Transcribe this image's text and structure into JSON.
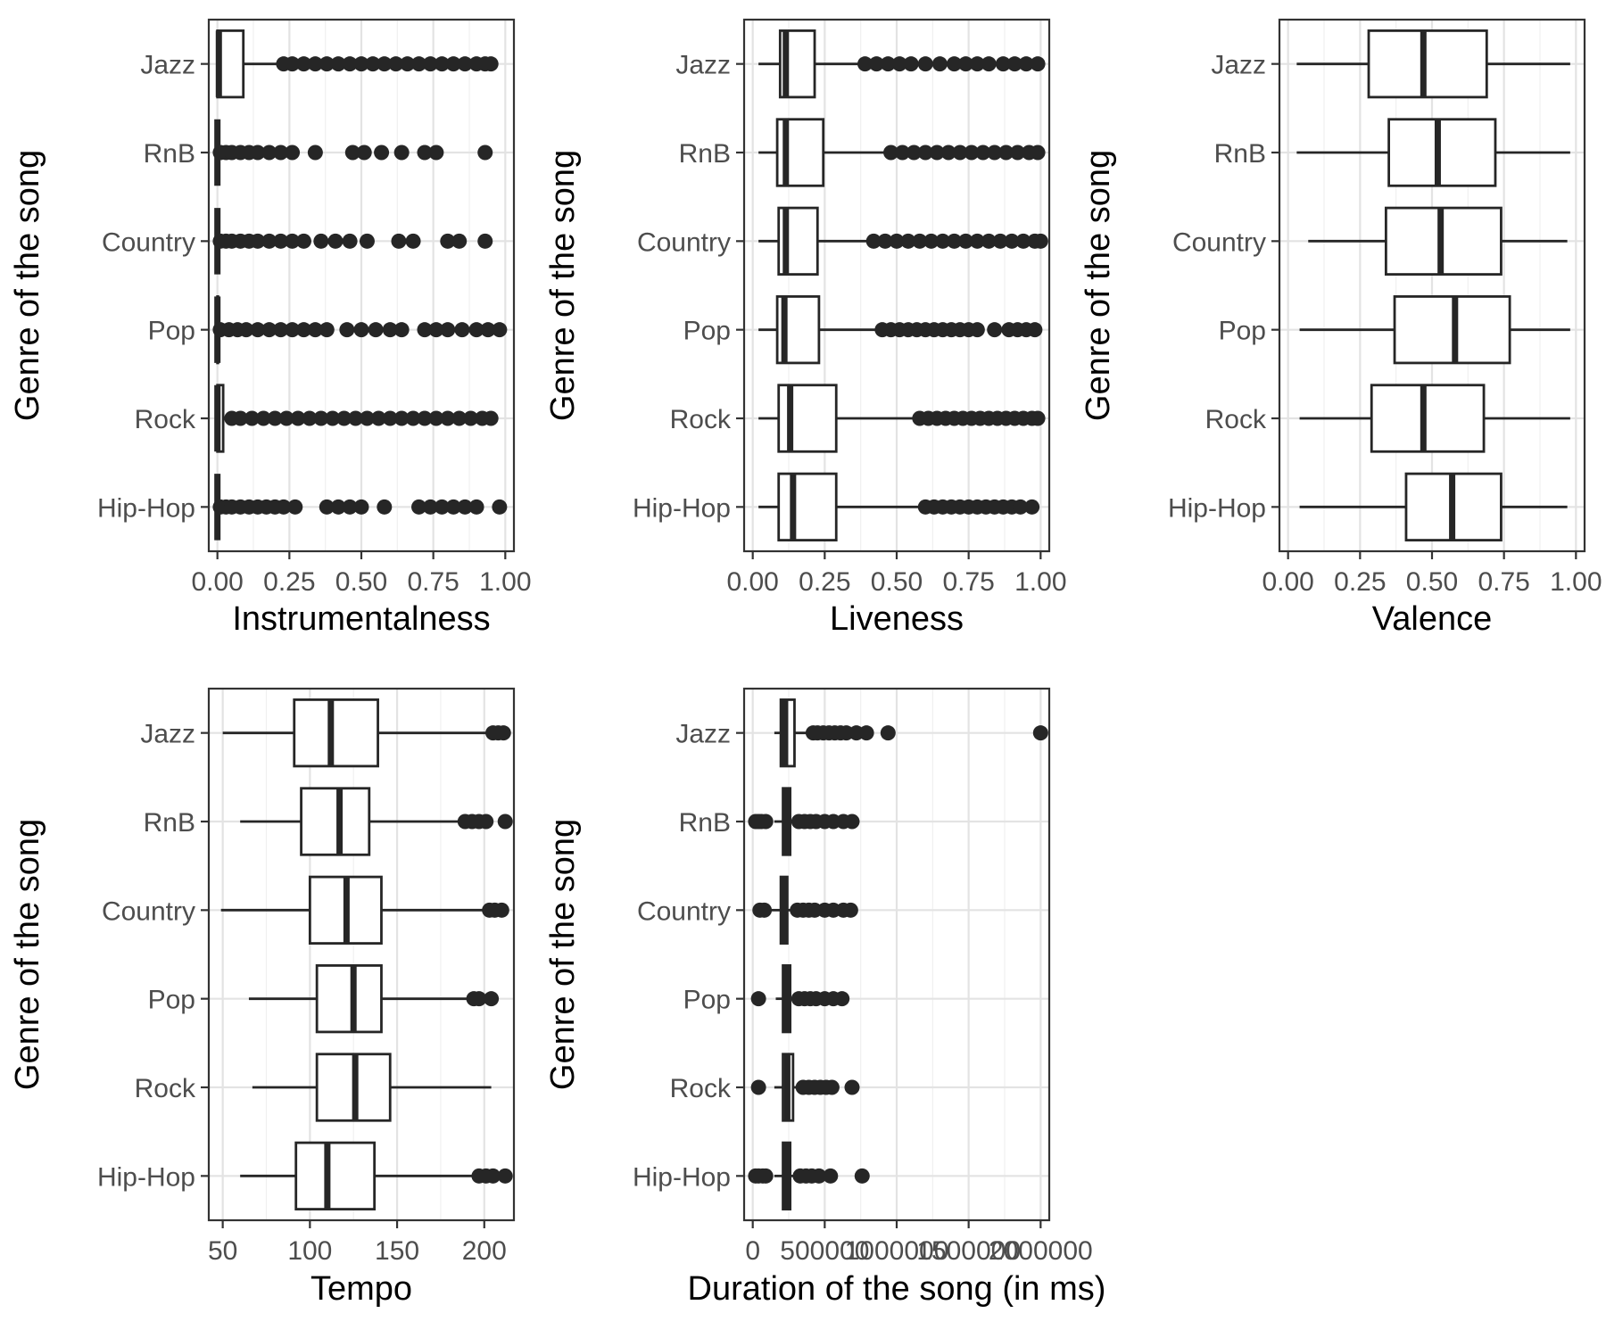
{
  "chart_data": [
    {
      "type": "boxplot",
      "orientation": "horizontal",
      "xlabel": "Instrumentalness",
      "ylabel": "Genre of the song",
      "xlim": [
        -0.03,
        1.03
      ],
      "xticks": [
        0,
        0.25,
        0.5,
        0.75,
        1
      ],
      "xtick_labels": [
        "0.00",
        "0.25",
        "0.50",
        "0.75",
        "1.00"
      ],
      "grid": true,
      "categories": [
        "Jazz",
        "RnB",
        "Country",
        "Pop",
        "Rock",
        "Hip-Hop"
      ],
      "boxes": [
        {
          "whisker_low": 0,
          "q1": 0,
          "median": 0.005,
          "q3": 0.09,
          "whisker_high": 0.22,
          "outliers": [
            0.23,
            0.26,
            0.3,
            0.34,
            0.38,
            0.42,
            0.46,
            0.5,
            0.54,
            0.58,
            0.62,
            0.66,
            0.7,
            0.74,
            0.78,
            0.82,
            0.86,
            0.9,
            0.93,
            0.95
          ]
        },
        {
          "whisker_low": 0,
          "q1": 0,
          "median": 0,
          "q3": 0,
          "whisker_high": 0,
          "outliers": [
            0.01,
            0.03,
            0.05,
            0.08,
            0.11,
            0.14,
            0.18,
            0.22,
            0.26,
            0.34,
            0.47,
            0.51,
            0.57,
            0.64,
            0.72,
            0.76,
            0.93
          ]
        },
        {
          "whisker_low": 0,
          "q1": 0,
          "median": 0,
          "q3": 0,
          "whisker_high": 0,
          "outliers": [
            0.01,
            0.03,
            0.05,
            0.08,
            0.11,
            0.14,
            0.18,
            0.22,
            0.26,
            0.3,
            0.36,
            0.41,
            0.46,
            0.52,
            0.63,
            0.68,
            0.8,
            0.84,
            0.93
          ]
        },
        {
          "whisker_low": 0,
          "q1": 0,
          "median": 0,
          "q3": 0.002,
          "whisker_high": 0.005,
          "outliers": [
            0.01,
            0.04,
            0.07,
            0.1,
            0.14,
            0.18,
            0.22,
            0.26,
            0.3,
            0.34,
            0.38,
            0.45,
            0.5,
            0.55,
            0.6,
            0.64,
            0.72,
            0.76,
            0.8,
            0.85,
            0.9,
            0.94,
            0.98
          ]
        },
        {
          "whisker_low": 0,
          "q1": 0,
          "median": 0,
          "q3": 0.02,
          "whisker_high": 0.04,
          "outliers": [
            0.05,
            0.08,
            0.12,
            0.16,
            0.2,
            0.24,
            0.28,
            0.32,
            0.36,
            0.4,
            0.44,
            0.48,
            0.52,
            0.56,
            0.6,
            0.64,
            0.68,
            0.72,
            0.76,
            0.8,
            0.84,
            0.88,
            0.92,
            0.95
          ]
        },
        {
          "whisker_low": 0,
          "q1": 0,
          "median": 0,
          "q3": 0,
          "whisker_high": 0,
          "outliers": [
            0.01,
            0.03,
            0.05,
            0.08,
            0.11,
            0.14,
            0.17,
            0.2,
            0.23,
            0.27,
            0.38,
            0.42,
            0.46,
            0.5,
            0.58,
            0.7,
            0.74,
            0.78,
            0.82,
            0.86,
            0.9,
            0.98
          ]
        }
      ]
    },
    {
      "type": "boxplot",
      "orientation": "horizontal",
      "xlabel": "Liveness",
      "ylabel": "Genre of the song",
      "xlim": [
        -0.03,
        1.03
      ],
      "xticks": [
        0,
        0.25,
        0.5,
        0.75,
        1
      ],
      "xtick_labels": [
        "0.00",
        "0.25",
        "0.50",
        "0.75",
        "1.00"
      ],
      "grid": true,
      "categories": [
        "Jazz",
        "RnB",
        "Country",
        "Pop",
        "Rock",
        "Hip-Hop"
      ],
      "boxes": [
        {
          "whisker_low": 0.02,
          "q1": 0.095,
          "median": 0.115,
          "q3": 0.215,
          "whisker_high": 0.38,
          "outliers": [
            0.39,
            0.43,
            0.47,
            0.51,
            0.55,
            0.6,
            0.65,
            0.7,
            0.74,
            0.78,
            0.82,
            0.87,
            0.91,
            0.95,
            0.99
          ]
        },
        {
          "whisker_low": 0.02,
          "q1": 0.085,
          "median": 0.115,
          "q3": 0.245,
          "whisker_high": 0.47,
          "outliers": [
            0.48,
            0.52,
            0.56,
            0.6,
            0.64,
            0.68,
            0.72,
            0.76,
            0.8,
            0.84,
            0.88,
            0.92,
            0.96,
            0.99
          ]
        },
        {
          "whisker_low": 0.02,
          "q1": 0.09,
          "median": 0.115,
          "q3": 0.225,
          "whisker_high": 0.41,
          "outliers": [
            0.42,
            0.46,
            0.5,
            0.54,
            0.58,
            0.62,
            0.66,
            0.7,
            0.74,
            0.78,
            0.82,
            0.86,
            0.9,
            0.94,
            0.98,
            1.0
          ]
        },
        {
          "whisker_low": 0.02,
          "q1": 0.085,
          "median": 0.11,
          "q3": 0.23,
          "whisker_high": 0.44,
          "outliers": [
            0.45,
            0.48,
            0.51,
            0.54,
            0.57,
            0.6,
            0.63,
            0.66,
            0.69,
            0.72,
            0.75,
            0.78,
            0.84,
            0.89,
            0.92,
            0.95,
            0.98
          ]
        },
        {
          "whisker_low": 0.02,
          "q1": 0.09,
          "median": 0.13,
          "q3": 0.29,
          "whisker_high": 0.57,
          "outliers": [
            0.58,
            0.61,
            0.64,
            0.67,
            0.7,
            0.73,
            0.76,
            0.79,
            0.82,
            0.85,
            0.88,
            0.91,
            0.94,
            0.97,
            0.99
          ]
        },
        {
          "whisker_low": 0.02,
          "q1": 0.09,
          "median": 0.14,
          "q3": 0.29,
          "whisker_high": 0.59,
          "outliers": [
            0.6,
            0.63,
            0.66,
            0.69,
            0.72,
            0.75,
            0.78,
            0.81,
            0.84,
            0.87,
            0.9,
            0.93,
            0.97
          ]
        }
      ]
    },
    {
      "type": "boxplot",
      "orientation": "horizontal",
      "xlabel": "Valence",
      "ylabel": "Genre of the song",
      "xlim": [
        -0.03,
        1.03
      ],
      "xticks": [
        0,
        0.25,
        0.5,
        0.75,
        1
      ],
      "xtick_labels": [
        "0.00",
        "0.25",
        "0.50",
        "0.75",
        "1.00"
      ],
      "grid": true,
      "categories": [
        "Jazz",
        "RnB",
        "Country",
        "Pop",
        "Rock",
        "Hip-Hop"
      ],
      "boxes": [
        {
          "whisker_low": 0.03,
          "q1": 0.28,
          "median": 0.47,
          "q3": 0.69,
          "whisker_high": 0.98,
          "outliers": []
        },
        {
          "whisker_low": 0.03,
          "q1": 0.35,
          "median": 0.52,
          "q3": 0.72,
          "whisker_high": 0.98,
          "outliers": []
        },
        {
          "whisker_low": 0.07,
          "q1": 0.34,
          "median": 0.53,
          "q3": 0.74,
          "whisker_high": 0.97,
          "outliers": []
        },
        {
          "whisker_low": 0.04,
          "q1": 0.37,
          "median": 0.58,
          "q3": 0.77,
          "whisker_high": 0.98,
          "outliers": []
        },
        {
          "whisker_low": 0.04,
          "q1": 0.29,
          "median": 0.47,
          "q3": 0.68,
          "whisker_high": 0.98,
          "outliers": []
        },
        {
          "whisker_low": 0.04,
          "q1": 0.41,
          "median": 0.57,
          "q3": 0.74,
          "whisker_high": 0.97,
          "outliers": []
        }
      ]
    },
    {
      "type": "boxplot",
      "orientation": "horizontal",
      "xlabel": "Tempo",
      "ylabel": "Genre of the song",
      "xlim": [
        42,
        217
      ],
      "xticks": [
        50,
        100,
        150,
        200
      ],
      "xtick_labels": [
        "50",
        "100",
        "150",
        "200"
      ],
      "grid": true,
      "categories": [
        "Jazz",
        "RnB",
        "Country",
        "Pop",
        "Rock",
        "Hip-Hop"
      ],
      "boxes": [
        {
          "whisker_low": 50,
          "q1": 91,
          "median": 112,
          "q3": 139,
          "whisker_high": 203,
          "outliers": [
            205,
            208,
            211
          ]
        },
        {
          "whisker_low": 60,
          "q1": 95,
          "median": 117,
          "q3": 134,
          "whisker_high": 188,
          "outliers": [
            189,
            193,
            197,
            201,
            212
          ]
        },
        {
          "whisker_low": 49,
          "q1": 100,
          "median": 121,
          "q3": 141,
          "whisker_high": 201,
          "outliers": [
            203,
            206,
            210
          ]
        },
        {
          "whisker_low": 65,
          "q1": 104,
          "median": 125,
          "q3": 141,
          "whisker_high": 193,
          "outliers": [
            194,
            197,
            204
          ]
        },
        {
          "whisker_low": 67,
          "q1": 104,
          "median": 126,
          "q3": 146,
          "whisker_high": 204,
          "outliers": []
        },
        {
          "whisker_low": 60,
          "q1": 92,
          "median": 110,
          "q3": 137,
          "whisker_high": 196,
          "outliers": [
            197,
            201,
            205,
            212
          ]
        }
      ]
    },
    {
      "type": "boxplot",
      "orientation": "horizontal",
      "xlabel": "Duration of the song (in ms)",
      "ylabel": "Genre of the song",
      "xlim": [
        -60000,
        2060000
      ],
      "xticks": [
        0,
        500000,
        1000000,
        1500000,
        2000000
      ],
      "xtick_labels": [
        "0",
        "500000",
        "1000000",
        "1500000",
        "2000000"
      ],
      "grid": true,
      "categories": [
        "Jazz",
        "RnB",
        "Country",
        "Pop",
        "Rock",
        "Hip-Hop"
      ],
      "boxes": [
        {
          "whisker_low": 150000,
          "q1": 195000,
          "median": 225000,
          "q3": 290000,
          "whisker_high": 410000,
          "outliers": [
            420000,
            450000,
            490000,
            530000,
            570000,
            610000,
            650000,
            720000,
            790000,
            940000,
            2000000
          ]
        },
        {
          "whisker_low": 150000,
          "q1": 210000,
          "median": 235000,
          "q3": 260000,
          "whisker_high": 310000,
          "outliers": [
            20000,
            40000,
            60000,
            90000,
            320000,
            360000,
            400000,
            440000,
            500000,
            560000,
            630000,
            690000
          ]
        },
        {
          "whisker_low": 130000,
          "q1": 195000,
          "median": 215000,
          "q3": 240000,
          "whisker_high": 290000,
          "outliers": [
            50000,
            80000,
            310000,
            350000,
            390000,
            430000,
            500000,
            560000,
            630000,
            680000
          ]
        },
        {
          "whisker_low": 160000,
          "q1": 210000,
          "median": 235000,
          "q3": 260000,
          "whisker_high": 310000,
          "outliers": [
            40000,
            320000,
            360000,
            400000,
            440000,
            500000,
            560000,
            620000
          ]
        },
        {
          "whisker_low": 150000,
          "q1": 210000,
          "median": 240000,
          "q3": 280000,
          "whisker_high": 330000,
          "outliers": [
            40000,
            350000,
            390000,
            430000,
            470000,
            510000,
            550000,
            690000
          ]
        },
        {
          "whisker_low": 150000,
          "q1": 210000,
          "median": 235000,
          "q3": 260000,
          "whisker_high": 310000,
          "outliers": [
            20000,
            40000,
            70000,
            90000,
            330000,
            370000,
            410000,
            460000,
            540000,
            760000
          ]
        }
      ]
    }
  ]
}
